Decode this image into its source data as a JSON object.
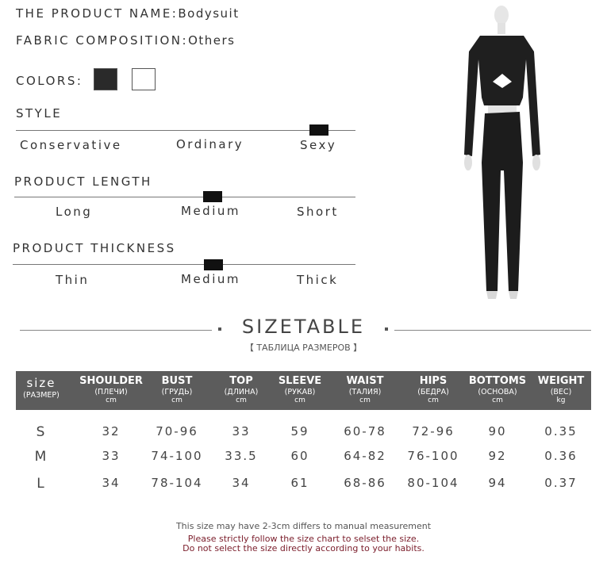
{
  "product": {
    "name_label": "THE PRODUCT NAME:",
    "name": "Bodysuit",
    "fabric_label": "FABRIC COMPOSITION:",
    "fabric": "Others",
    "colors_label": "COLORS:",
    "colors": [
      "#2a2a2a",
      "#ffffff"
    ]
  },
  "scales": [
    {
      "title": "STYLE",
      "options": [
        "Conservative",
        "Ordinary",
        "Sexy"
      ],
      "selected": "Sexy",
      "level_percent": 90
    },
    {
      "title": "PRODUCT LENGTH",
      "options": [
        "Long",
        "Medium",
        "Short"
      ],
      "selected": "Medium",
      "level_percent": 57
    },
    {
      "title": "PRODUCT THICKNESS",
      "options": [
        "Thin",
        "Medium",
        "Thick"
      ],
      "selected": "Medium",
      "level_percent": 57
    }
  ],
  "sizetable": {
    "title": "SIZETABLE",
    "subtitle": "【 ТАБЛИЦА РАЗМЕРОВ 】",
    "header_color": "#5c5c5c",
    "columns": [
      {
        "name": "size",
        "sub": "(РАЗМЕР)",
        "unit": ""
      },
      {
        "name": "SHOULDER",
        "sub": "(ПЛЕЧИ)",
        "unit": "cm"
      },
      {
        "name": "BUST",
        "sub": "(ГРУДЬ)",
        "unit": "cm"
      },
      {
        "name": "TOP",
        "sub": "(ДЛИНА)",
        "unit": "cm"
      },
      {
        "name": "SLEEVE",
        "sub": "(РУКАВ)",
        "unit": "cm"
      },
      {
        "name": "WAIST",
        "sub": "(ТАЛИЯ)",
        "unit": "cm"
      },
      {
        "name": "HIPS",
        "sub": "(БЕДРА)",
        "unit": "cm"
      },
      {
        "name": "BOTTOMS",
        "sub": "(ОСНОВА)",
        "unit": "cm"
      },
      {
        "name": "WEIGHT",
        "sub": "(ВЕС)",
        "unit": "kg"
      }
    ],
    "rows": [
      [
        "S",
        "32",
        "70-96",
        "33",
        "59",
        "60-78",
        "72-96",
        "90",
        "0.35"
      ],
      [
        "M",
        "33",
        "74-100",
        "33.5",
        "60",
        "64-82",
        "76-100",
        "92",
        "0.36"
      ],
      [
        "L",
        "34",
        "78-104",
        "34",
        "61",
        "68-86",
        "80-104",
        "94",
        "0.37"
      ]
    ]
  },
  "notes": {
    "line1": "This size may have 2-3cm differs to manual measurement",
    "line2": "Please strictly follow the size chart to selset the size.",
    "line3": "Do not select the size directly according to your habits.",
    "warn_color": "#7a1c2a"
  }
}
